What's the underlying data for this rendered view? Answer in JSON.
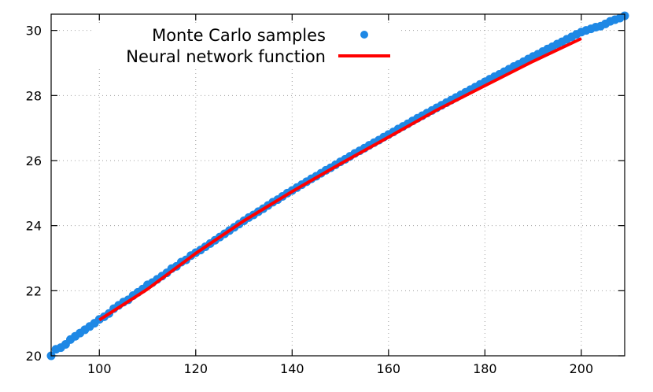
{
  "chart_data": {
    "type": "scatter",
    "title": "",
    "xlabel": "",
    "ylabel": "",
    "xlim": [
      90,
      209
    ],
    "ylim": [
      20,
      30.5
    ],
    "x_ticks": [
      100,
      120,
      140,
      160,
      180,
      200
    ],
    "y_ticks": [
      20,
      22,
      24,
      26,
      28,
      30
    ],
    "grid": true,
    "legend_position": "top-left",
    "series": [
      {
        "name": "Monte Carlo samples",
        "kind": "scatter",
        "color": "#1e88e5",
        "x": [
          90,
          91,
          92,
          93,
          94,
          95,
          96,
          97,
          98,
          99,
          100,
          101,
          102,
          103,
          104,
          105,
          106,
          107,
          108,
          109,
          110,
          111,
          112,
          113,
          114,
          115,
          116,
          117,
          118,
          119,
          120,
          121,
          122,
          123,
          124,
          125,
          126,
          127,
          128,
          129,
          130,
          131,
          132,
          133,
          134,
          135,
          136,
          137,
          138,
          139,
          140,
          141,
          142,
          143,
          144,
          145,
          146,
          147,
          148,
          149,
          150,
          151,
          152,
          153,
          154,
          155,
          156,
          157,
          158,
          159,
          160,
          161,
          162,
          163,
          164,
          165,
          166,
          167,
          168,
          169,
          170,
          171,
          172,
          173,
          174,
          175,
          176,
          177,
          178,
          179,
          180,
          181,
          182,
          183,
          184,
          185,
          186,
          187,
          188,
          189,
          190,
          191,
          192,
          193,
          194,
          195,
          196,
          197,
          198,
          199,
          200,
          201,
          202,
          203,
          204,
          205,
          206,
          207,
          208,
          209
        ],
        "y": [
          20.0,
          20.2,
          20.25,
          20.35,
          20.5,
          20.6,
          20.7,
          20.8,
          20.9,
          21.0,
          21.12,
          21.2,
          21.3,
          21.45,
          21.55,
          21.65,
          21.72,
          21.85,
          21.95,
          22.05,
          22.18,
          22.25,
          22.35,
          22.45,
          22.55,
          22.68,
          22.75,
          22.88,
          22.95,
          23.08,
          23.17,
          23.25,
          23.35,
          23.45,
          23.55,
          23.65,
          23.75,
          23.85,
          23.95,
          24.05,
          24.15,
          24.25,
          24.33,
          24.43,
          24.52,
          24.62,
          24.72,
          24.8,
          24.9,
          25.0,
          25.08,
          25.17,
          25.26,
          25.35,
          25.44,
          25.52,
          25.61,
          25.7,
          25.78,
          25.87,
          25.96,
          26.04,
          26.13,
          26.22,
          26.3,
          26.38,
          26.47,
          26.55,
          26.63,
          26.72,
          26.8,
          26.88,
          26.97,
          27.05,
          27.13,
          27.22,
          27.3,
          27.38,
          27.46,
          27.54,
          27.62,
          27.7,
          27.78,
          27.86,
          27.94,
          28.02,
          28.1,
          28.18,
          28.26,
          28.34,
          28.42,
          28.5,
          28.58,
          28.65,
          28.73,
          28.81,
          28.89,
          28.96,
          29.04,
          29.12,
          29.2,
          29.27,
          29.35,
          29.43,
          29.5,
          29.58,
          29.65,
          29.73,
          29.8,
          29.88,
          29.95,
          30.0,
          30.05,
          30.1,
          30.13,
          30.2,
          30.28,
          30.33,
          30.38,
          30.45
        ]
      },
      {
        "name": "Neural network function",
        "kind": "line",
        "color": "#ff0000",
        "x": [
          100,
          110,
          120,
          130,
          140,
          150,
          160,
          170,
          180,
          190,
          200
        ],
        "y": [
          21.1,
          22.05,
          23.15,
          24.15,
          25.05,
          25.9,
          26.72,
          27.55,
          28.3,
          29.05,
          29.75
        ]
      }
    ]
  }
}
